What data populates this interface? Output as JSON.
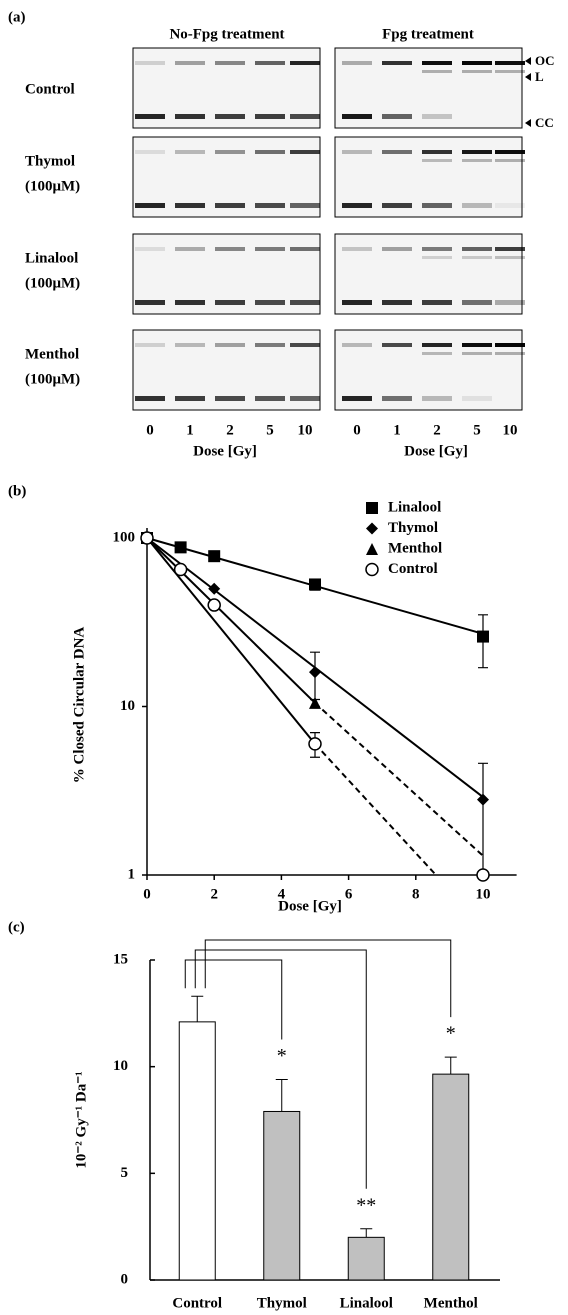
{
  "panel_a": {
    "label": "(a)",
    "headers": [
      "No-Fpg treatment",
      "Fpg treatment"
    ],
    "conditions": [
      {
        "name": "Control"
      },
      {
        "name": "Thymol",
        "sub": "(100μM)"
      },
      {
        "name": "Linalool",
        "sub": "(100μM)"
      },
      {
        "name": "Menthol",
        "sub": "(100μM)"
      }
    ],
    "doses": [
      0,
      1,
      2,
      5,
      10
    ],
    "x_label": "Dose [Gy]",
    "band_labels": [
      "OC",
      "L",
      "CC"
    ]
  },
  "chart_data": [
    {
      "type": "line",
      "label": "(b)",
      "x_label": "Dose [Gy]",
      "y_label": "% Closed Circular DNA",
      "log_y": true,
      "xlim": [
        0,
        11
      ],
      "xticks": [
        0,
        2,
        4,
        6,
        8,
        10
      ],
      "ylim": [
        1,
        100
      ],
      "yticks": [
        1,
        10,
        100
      ],
      "legend": "upper right",
      "series": [
        {
          "name": "Linalool",
          "marker": "square",
          "color": "#000000",
          "x": [
            0,
            1,
            2,
            5,
            10
          ],
          "values": [
            100,
            88,
            78,
            53,
            26
          ],
          "errors": [
            null,
            null,
            null,
            4,
            9
          ],
          "fit": {
            "x": [
              0,
              10
            ],
            "values": [
              100,
              27
            ]
          }
        },
        {
          "name": "Thymol",
          "marker": "diamond",
          "color": "#000000",
          "x": [
            0,
            2,
            5,
            10
          ],
          "values": [
            100,
            50,
            16,
            2.8
          ],
          "errors": [
            null,
            null,
            5,
            1.8
          ],
          "fit": {
            "x": [
              0,
              10
            ],
            "values": [
              100,
              2.9
            ]
          }
        },
        {
          "name": "Menthol",
          "marker": "triangle",
          "color": "#000000",
          "x": [
            0,
            5
          ],
          "values": [
            100,
            10.5
          ],
          "errors": [
            null,
            null
          ],
          "fit": {
            "x": [
              0,
              5
            ],
            "values": [
              100,
              10.5
            ]
          },
          "extrapolation": {
            "x": [
              5,
              10
            ],
            "values": [
              10.5,
              1.3
            ]
          }
        },
        {
          "name": "Control",
          "marker": "circle",
          "color": "#000000",
          "x": [
            0,
            1,
            2,
            5,
            10
          ],
          "values": [
            100,
            65,
            40,
            6,
            1
          ],
          "errors": [
            null,
            null,
            null,
            1,
            null
          ],
          "fit": {
            "x": [
              0,
              5
            ],
            "values": [
              100,
              6
            ]
          },
          "extrapolation": {
            "x": [
              5,
              8.6
            ],
            "values": [
              6,
              1
            ]
          }
        }
      ]
    },
    {
      "type": "bar",
      "label": "(c)",
      "y_label": "10⁻² Gy⁻¹ Da⁻¹",
      "ylim": [
        0,
        15
      ],
      "yticks": [
        0,
        5,
        10,
        15
      ],
      "categories": [
        "Control",
        "Thymol",
        "Linalool",
        "Menthol"
      ],
      "values": [
        12.1,
        7.9,
        2.0,
        9.65
      ],
      "errors": [
        1.2,
        1.5,
        0.4,
        0.8
      ],
      "colors": [
        "#ffffff",
        "#c0c0c0",
        "#c0c0c0",
        "#c0c0c0"
      ],
      "significance": [
        null,
        "*",
        "**",
        "*"
      ]
    }
  ]
}
